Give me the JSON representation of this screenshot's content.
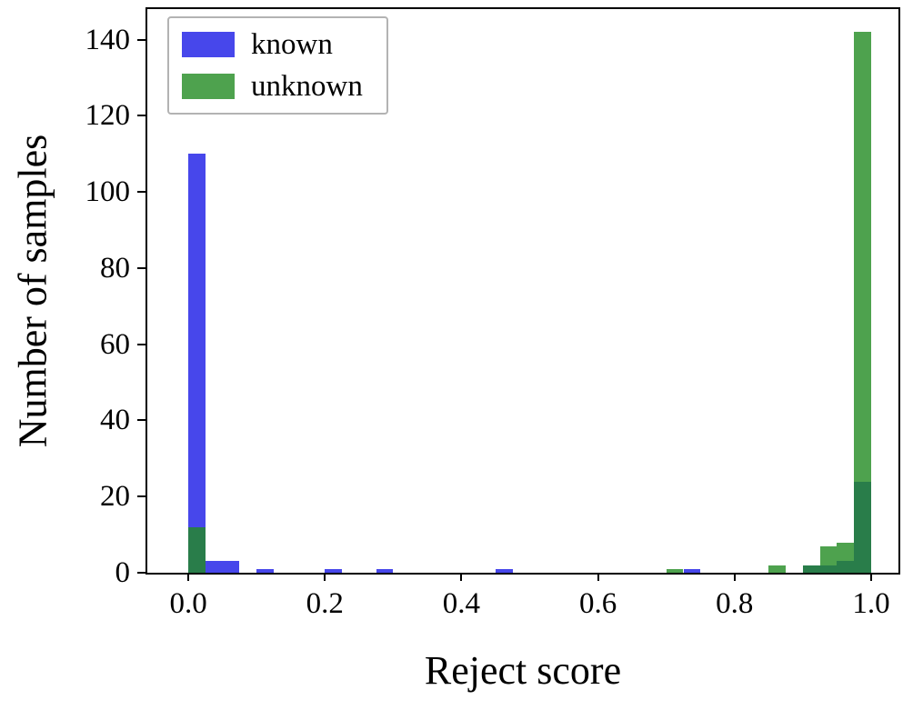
{
  "chart_data": {
    "type": "bar",
    "title": "",
    "xlabel": "Reject score",
    "ylabel": "Number of samples",
    "xlim": [
      -0.06,
      1.04
    ],
    "ylim": [
      0,
      148
    ],
    "bin_width": 0.025,
    "grid": false,
    "legend_position": "upper-left",
    "xticks": {
      "values": [
        0.0,
        0.2,
        0.4,
        0.6,
        0.8,
        1.0
      ],
      "labels": [
        "0.0",
        "0.2",
        "0.4",
        "0.6",
        "0.8",
        "1.0"
      ]
    },
    "yticks": {
      "values": [
        0,
        20,
        40,
        60,
        80,
        100,
        120,
        140
      ],
      "labels": [
        "0",
        "20",
        "40",
        "60",
        "80",
        "100",
        "120",
        "140"
      ]
    },
    "series": [
      {
        "name": "known",
        "color": "rgba(25,25,230,0.8)"
      },
      {
        "name": "unknown",
        "color": "rgba(34,139,34,0.8)"
      }
    ],
    "bars": [
      {
        "x": 0.0,
        "known": 110,
        "unknown": 12
      },
      {
        "x": 0.025,
        "known": 3,
        "unknown": 0
      },
      {
        "x": 0.05,
        "known": 3,
        "unknown": 0
      },
      {
        "x": 0.1,
        "known": 1,
        "unknown": 0
      },
      {
        "x": 0.2,
        "known": 1,
        "unknown": 0
      },
      {
        "x": 0.275,
        "known": 1,
        "unknown": 0
      },
      {
        "x": 0.45,
        "known": 1,
        "unknown": 0
      },
      {
        "x": 0.7,
        "known": 0,
        "unknown": 1
      },
      {
        "x": 0.725,
        "known": 1,
        "unknown": 0
      },
      {
        "x": 0.85,
        "known": 0,
        "unknown": 2
      },
      {
        "x": 0.9,
        "known": 2,
        "unknown": 2
      },
      {
        "x": 0.925,
        "known": 2,
        "unknown": 7
      },
      {
        "x": 0.95,
        "known": 3,
        "unknown": 8
      },
      {
        "x": 0.975,
        "known": 24,
        "unknown": 142
      }
    ]
  }
}
